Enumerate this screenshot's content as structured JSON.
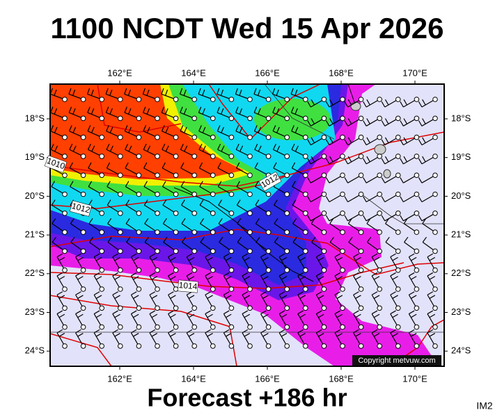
{
  "header": {
    "title": "1100 NCDT Wed 15 Apr 2026"
  },
  "map": {
    "lon_labels": [
      "162°E",
      "164°E",
      "166°E",
      "168°E",
      "170°E"
    ],
    "lat_labels": [
      "18°S",
      "19°S",
      "20°S",
      "21°S",
      "22°S",
      "23°S",
      "24°S"
    ],
    "isobar_labels": [
      "1010",
      "1012",
      "1012",
      "1014"
    ],
    "copyright": "Copyright metvuw.com"
  },
  "footer": {
    "forecast": "Forecast +186 hr",
    "code": "IM2"
  }
}
